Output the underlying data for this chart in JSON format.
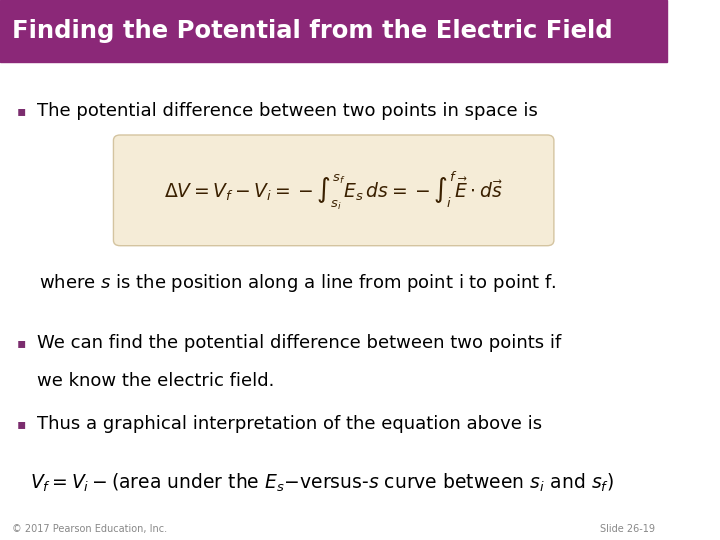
{
  "title": "Finding the Potential from the Electric Field",
  "title_bg_color": "#8B2878",
  "title_text_color": "#FFFFFF",
  "slide_bg_color": "#FFFFFF",
  "bullet_color": "#7B2D6E",
  "text_color": "#000000",
  "formula_box_color": "#F5ECD7",
  "formula_box_edge_color": "#D4C4A0",
  "bullet1": "The potential difference between two points in space is",
  "formula1": "$\\Delta V = V_f - V_i = -\\int_{s_i}^{s_f} E_s \\, ds = -\\int_{i}^{f} \\vec{E} \\cdot d\\vec{s}$",
  "where_text": "where $s$ is the position along a line from point i to point f.",
  "bullet2_line1": "We can find the potential difference between two points if",
  "bullet2_line2": "we know the electric field.",
  "bullet3": "Thus a graphical interpretation of the equation above is",
  "formula2": "$V_f = V_i - \\mathrm{(area\\ under\\ the\\ } E_s\\mathrm{\\text{-versus-}}s\\mathrm{\\ curve\\ between\\ } s_i \\mathrm{\\ and\\ } s_f\\mathrm{)}$",
  "footer_left": "© 2017 Pearson Education, Inc.",
  "footer_right": "Slide 26-19",
  "footer_color": "#888888"
}
